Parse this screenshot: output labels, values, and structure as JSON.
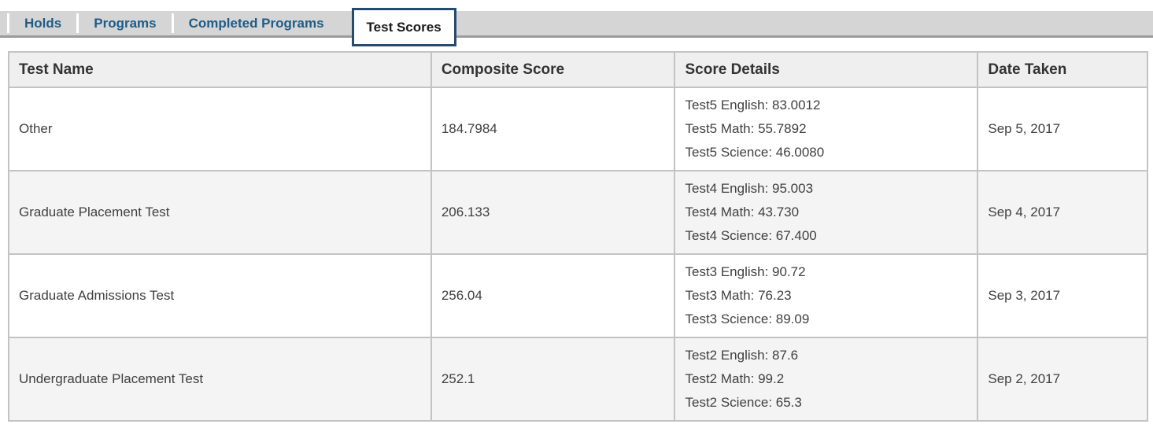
{
  "tabs": {
    "items": [
      {
        "label": "Holds",
        "active": false
      },
      {
        "label": "Programs",
        "active": false
      },
      {
        "label": "Completed Programs",
        "active": false
      },
      {
        "label": "Test Scores",
        "active": true
      }
    ]
  },
  "table": {
    "columns": [
      "Test Name",
      "Composite Score",
      "Score Details",
      "Date Taken"
    ],
    "rows": [
      {
        "test_name": "Other",
        "composite_score": "184.7984",
        "score_details": [
          "Test5 English: 83.0012",
          "Test5 Math: 55.7892",
          "Test5 Science: 46.0080"
        ],
        "date_taken": "Sep 5, 2017"
      },
      {
        "test_name": "Graduate Placement Test",
        "composite_score": "206.133",
        "score_details": [
          "Test4 English: 95.003",
          "Test4 Math: 43.730",
          "Test4 Science: 67.400"
        ],
        "date_taken": "Sep 4, 2017"
      },
      {
        "test_name": "Graduate Admissions Test",
        "composite_score": "256.04",
        "score_details": [
          "Test3 English: 90.72",
          "Test3 Math: 76.23",
          "Test3 Science: 89.09"
        ],
        "date_taken": "Sep 3, 2017"
      },
      {
        "test_name": "Undergraduate Placement Test",
        "composite_score": "252.1",
        "score_details": [
          "Test2 English: 87.6",
          "Test2 Math: 99.2",
          "Test2 Science: 65.3"
        ],
        "date_taken": "Sep 2, 2017"
      }
    ]
  },
  "colors": {
    "tab_link": "#1f5c87",
    "active_tab_border": "#274b6d",
    "tab_bar_bg": "#d5d5d5",
    "tab_bar_bottom_border": "#9b9b9b",
    "header_bg": "#efefef",
    "row_stripe_bg": "#f4f4f4",
    "table_border": "#c3c3c3",
    "body_text": "#404040"
  }
}
